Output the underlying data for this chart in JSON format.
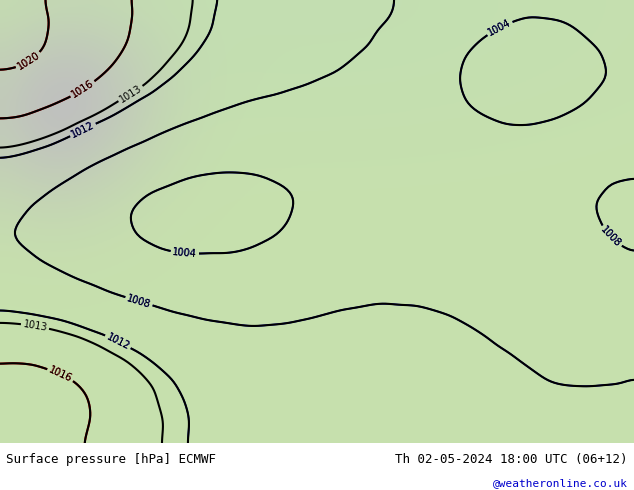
{
  "title_left": "Surface pressure [hPa] ECMWF",
  "title_right": "Th 02-05-2024 18:00 UTC (06+12)",
  "credit": "@weatheronline.co.uk",
  "bg_color": "#d4e8c2",
  "land_color": "#c8e0b0",
  "sea_color": "#d4e8c2",
  "gray_color": "#b0b0b0",
  "text_color_black": "#000000",
  "text_color_blue": "#0000cc",
  "text_color_red": "#cc0000",
  "figsize": [
    6.34,
    4.9
  ],
  "dpi": 100,
  "bottom_bar_color": "#e8e8e8",
  "title_fontsize": 9,
  "credit_color": "#0000cc",
  "credit_fontsize": 8
}
